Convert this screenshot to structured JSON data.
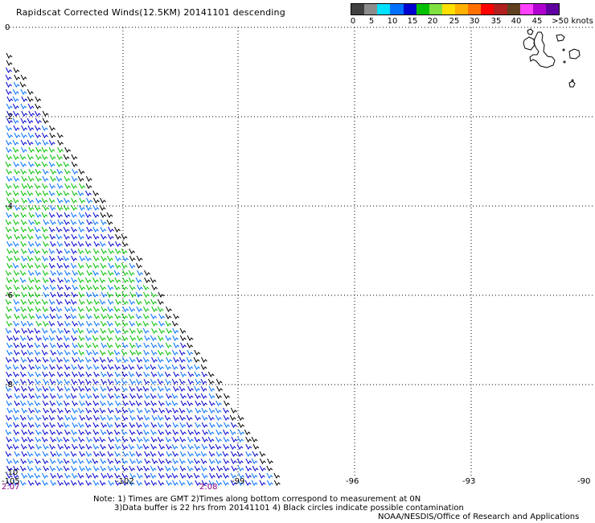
{
  "title": "Rapidscat Corrected Winds(12.5KM) 20141101 descending",
  "legend": {
    "colors": [
      "#404040",
      "#8c8c8c",
      "#00e0ff",
      "#0070ff",
      "#0000d0",
      "#00c000",
      "#80e040",
      "#ffe000",
      "#ffb000",
      "#ff7000",
      "#ff0000",
      "#b02020",
      "#604020",
      "#ff40ff",
      "#b000d0",
      "#6000a0"
    ],
    "labels": [
      "0",
      "5",
      "10",
      "15",
      "20",
      "25",
      "30",
      "35",
      "40",
      "45",
      ">50 knots"
    ]
  },
  "axes": {
    "lat_labels": [
      "0",
      "-2",
      "-4",
      "-6",
      "-8",
      "-10"
    ],
    "lon_labels": [
      "-105",
      "-102",
      "-99",
      "-96",
      "-93",
      "-90"
    ],
    "time_labels": [
      "2:07",
      "2:08"
    ]
  },
  "wind_colors": {
    "calm_blue": "#0000d0",
    "mid_blue": "#0070ff",
    "green": "#00c000",
    "black": "#000000"
  },
  "notes": {
    "line1": "Note: 1) Times are GMT 2)Times along bottom correspond to measurement at 0N",
    "line2": "3)Data buffer is 22 hrs from 20141101 4) Black circles indicate possible contamination",
    "credit": "NOAA/NESDIS/Office of Research and Applications"
  }
}
